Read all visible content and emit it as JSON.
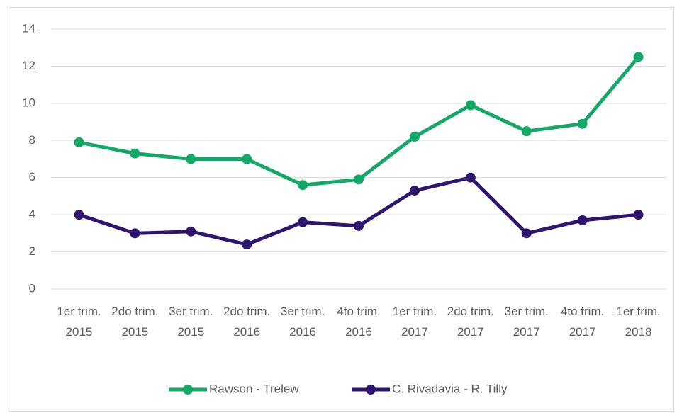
{
  "chart_data": {
    "type": "line",
    "categories": [
      "1er trim. 2015",
      "2do trim. 2015",
      "3er trim. 2015",
      "2do trim. 2016",
      "3er trim. 2016",
      "4to trim. 2016",
      "1er trim. 2017",
      "2do trim. 2017",
      "3er trim. 2017",
      "4to trim. 2017",
      "1er trim. 2018"
    ],
    "series": [
      {
        "name": "Rawson - Trelew",
        "color": "#13a866",
        "values": [
          7.9,
          7.3,
          7.0,
          7.0,
          5.6,
          5.9,
          8.2,
          9.9,
          8.5,
          8.9,
          12.5
        ]
      },
      {
        "name": "C. Rivadavia - R. Tilly",
        "color": "#2e1670",
        "values": [
          4.0,
          3.0,
          3.1,
          2.4,
          3.6,
          3.4,
          5.3,
          6.0,
          3.0,
          3.7,
          4.0
        ]
      }
    ],
    "ylim": [
      0,
      14
    ],
    "yticks": [
      0,
      2,
      4,
      6,
      8,
      10,
      12,
      14
    ],
    "grid": true,
    "legend": "bottom"
  }
}
